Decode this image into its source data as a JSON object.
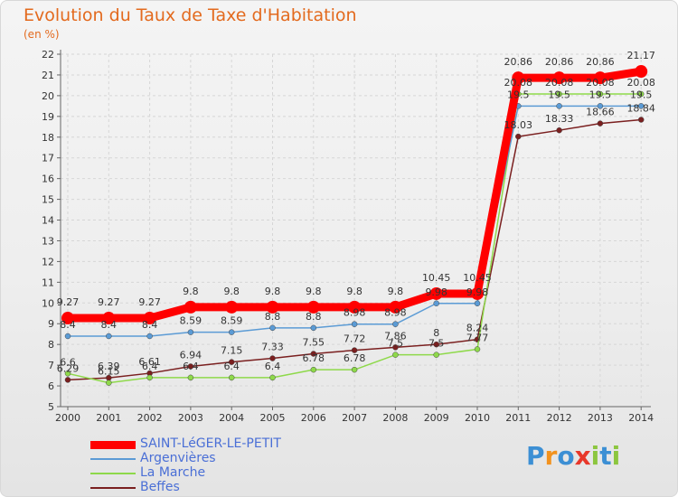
{
  "chart_data": {
    "type": "line",
    "title": "Evolution du Taux de Taxe d'Habitation",
    "subtitle": "(en %)",
    "x": [
      "2000",
      "2001",
      "2002",
      "2003",
      "2004",
      "2005",
      "2006",
      "2007",
      "2008",
      "2009",
      "2010",
      "2011",
      "2012",
      "2013",
      "2014"
    ],
    "ylim": [
      5,
      22
    ],
    "yticks": [
      5,
      6,
      7,
      8,
      9,
      10,
      11,
      12,
      13,
      14,
      15,
      16,
      17,
      18,
      19,
      20,
      21,
      22
    ],
    "grid": true,
    "series": [
      {
        "name": "SAINT-LéGER-LE-PETIT",
        "color": "#ff0000",
        "values": [
          9.27,
          9.27,
          9.27,
          9.8,
          9.8,
          9.8,
          9.8,
          9.8,
          9.8,
          10.45,
          10.45,
          20.86,
          20.86,
          20.86,
          21.17
        ],
        "labels": [
          "9.27",
          "9.27",
          "9.27",
          "9.8",
          "9.8",
          "9.8",
          "9.8",
          "9.8",
          "9.8",
          "10.45",
          "10.45",
          "20.86",
          "20.86",
          "20.86",
          "21.17"
        ]
      },
      {
        "name": "Argenvières",
        "color": "#5b9bd5",
        "values": [
          8.4,
          8.4,
          8.4,
          8.59,
          8.59,
          8.8,
          8.8,
          8.98,
          8.98,
          9.98,
          9.98,
          19.5,
          19.5,
          19.5,
          19.5
        ],
        "labels": [
          "8.4",
          "8.4",
          "8.4",
          "8.59",
          "8.59",
          "8.8",
          "8.8",
          "8.98",
          "8.98",
          "9.98",
          "9.98",
          "19.5",
          "19.5",
          "19.5",
          "19.5"
        ]
      },
      {
        "name": "La Marche",
        "color": "#8ed94a",
        "values": [
          6.6,
          6.15,
          6.4,
          6.4,
          6.4,
          6.4,
          6.78,
          6.78,
          7.5,
          7.5,
          7.77,
          20.08,
          20.08,
          20.08,
          20.08
        ],
        "labels": [
          "6.6",
          "6.15",
          "6.4",
          "6.4",
          "6.4",
          "6.4",
          "6.78",
          "6.78",
          "7.5",
          "7.5",
          "7.77",
          "20.08",
          "20.08",
          "20.08",
          "20.08"
        ]
      },
      {
        "name": "Beffes",
        "color": "#7a1f1f",
        "values": [
          6.29,
          6.39,
          6.61,
          6.94,
          7.15,
          7.33,
          7.55,
          7.72,
          7.86,
          8.0,
          8.24,
          18.03,
          18.33,
          18.66,
          18.84
        ],
        "labels": [
          "6.29",
          "6.39",
          "6.61",
          "6.94",
          "7.15",
          "7.33",
          "7.55",
          "7.72",
          "7.86",
          "8",
          "8.24",
          "18.03",
          "18.33",
          "18.66",
          "18.84"
        ]
      }
    ],
    "legend": "bottom-left"
  },
  "logo": {
    "letters": [
      "P",
      "r",
      "o",
      "x",
      "i",
      "t",
      "i"
    ],
    "colors": [
      "#3c8fd4",
      "#f2921e",
      "#3c8fd4",
      "#e8382a",
      "#8cc63f",
      "#3c8fd4",
      "#8cc63f"
    ]
  }
}
